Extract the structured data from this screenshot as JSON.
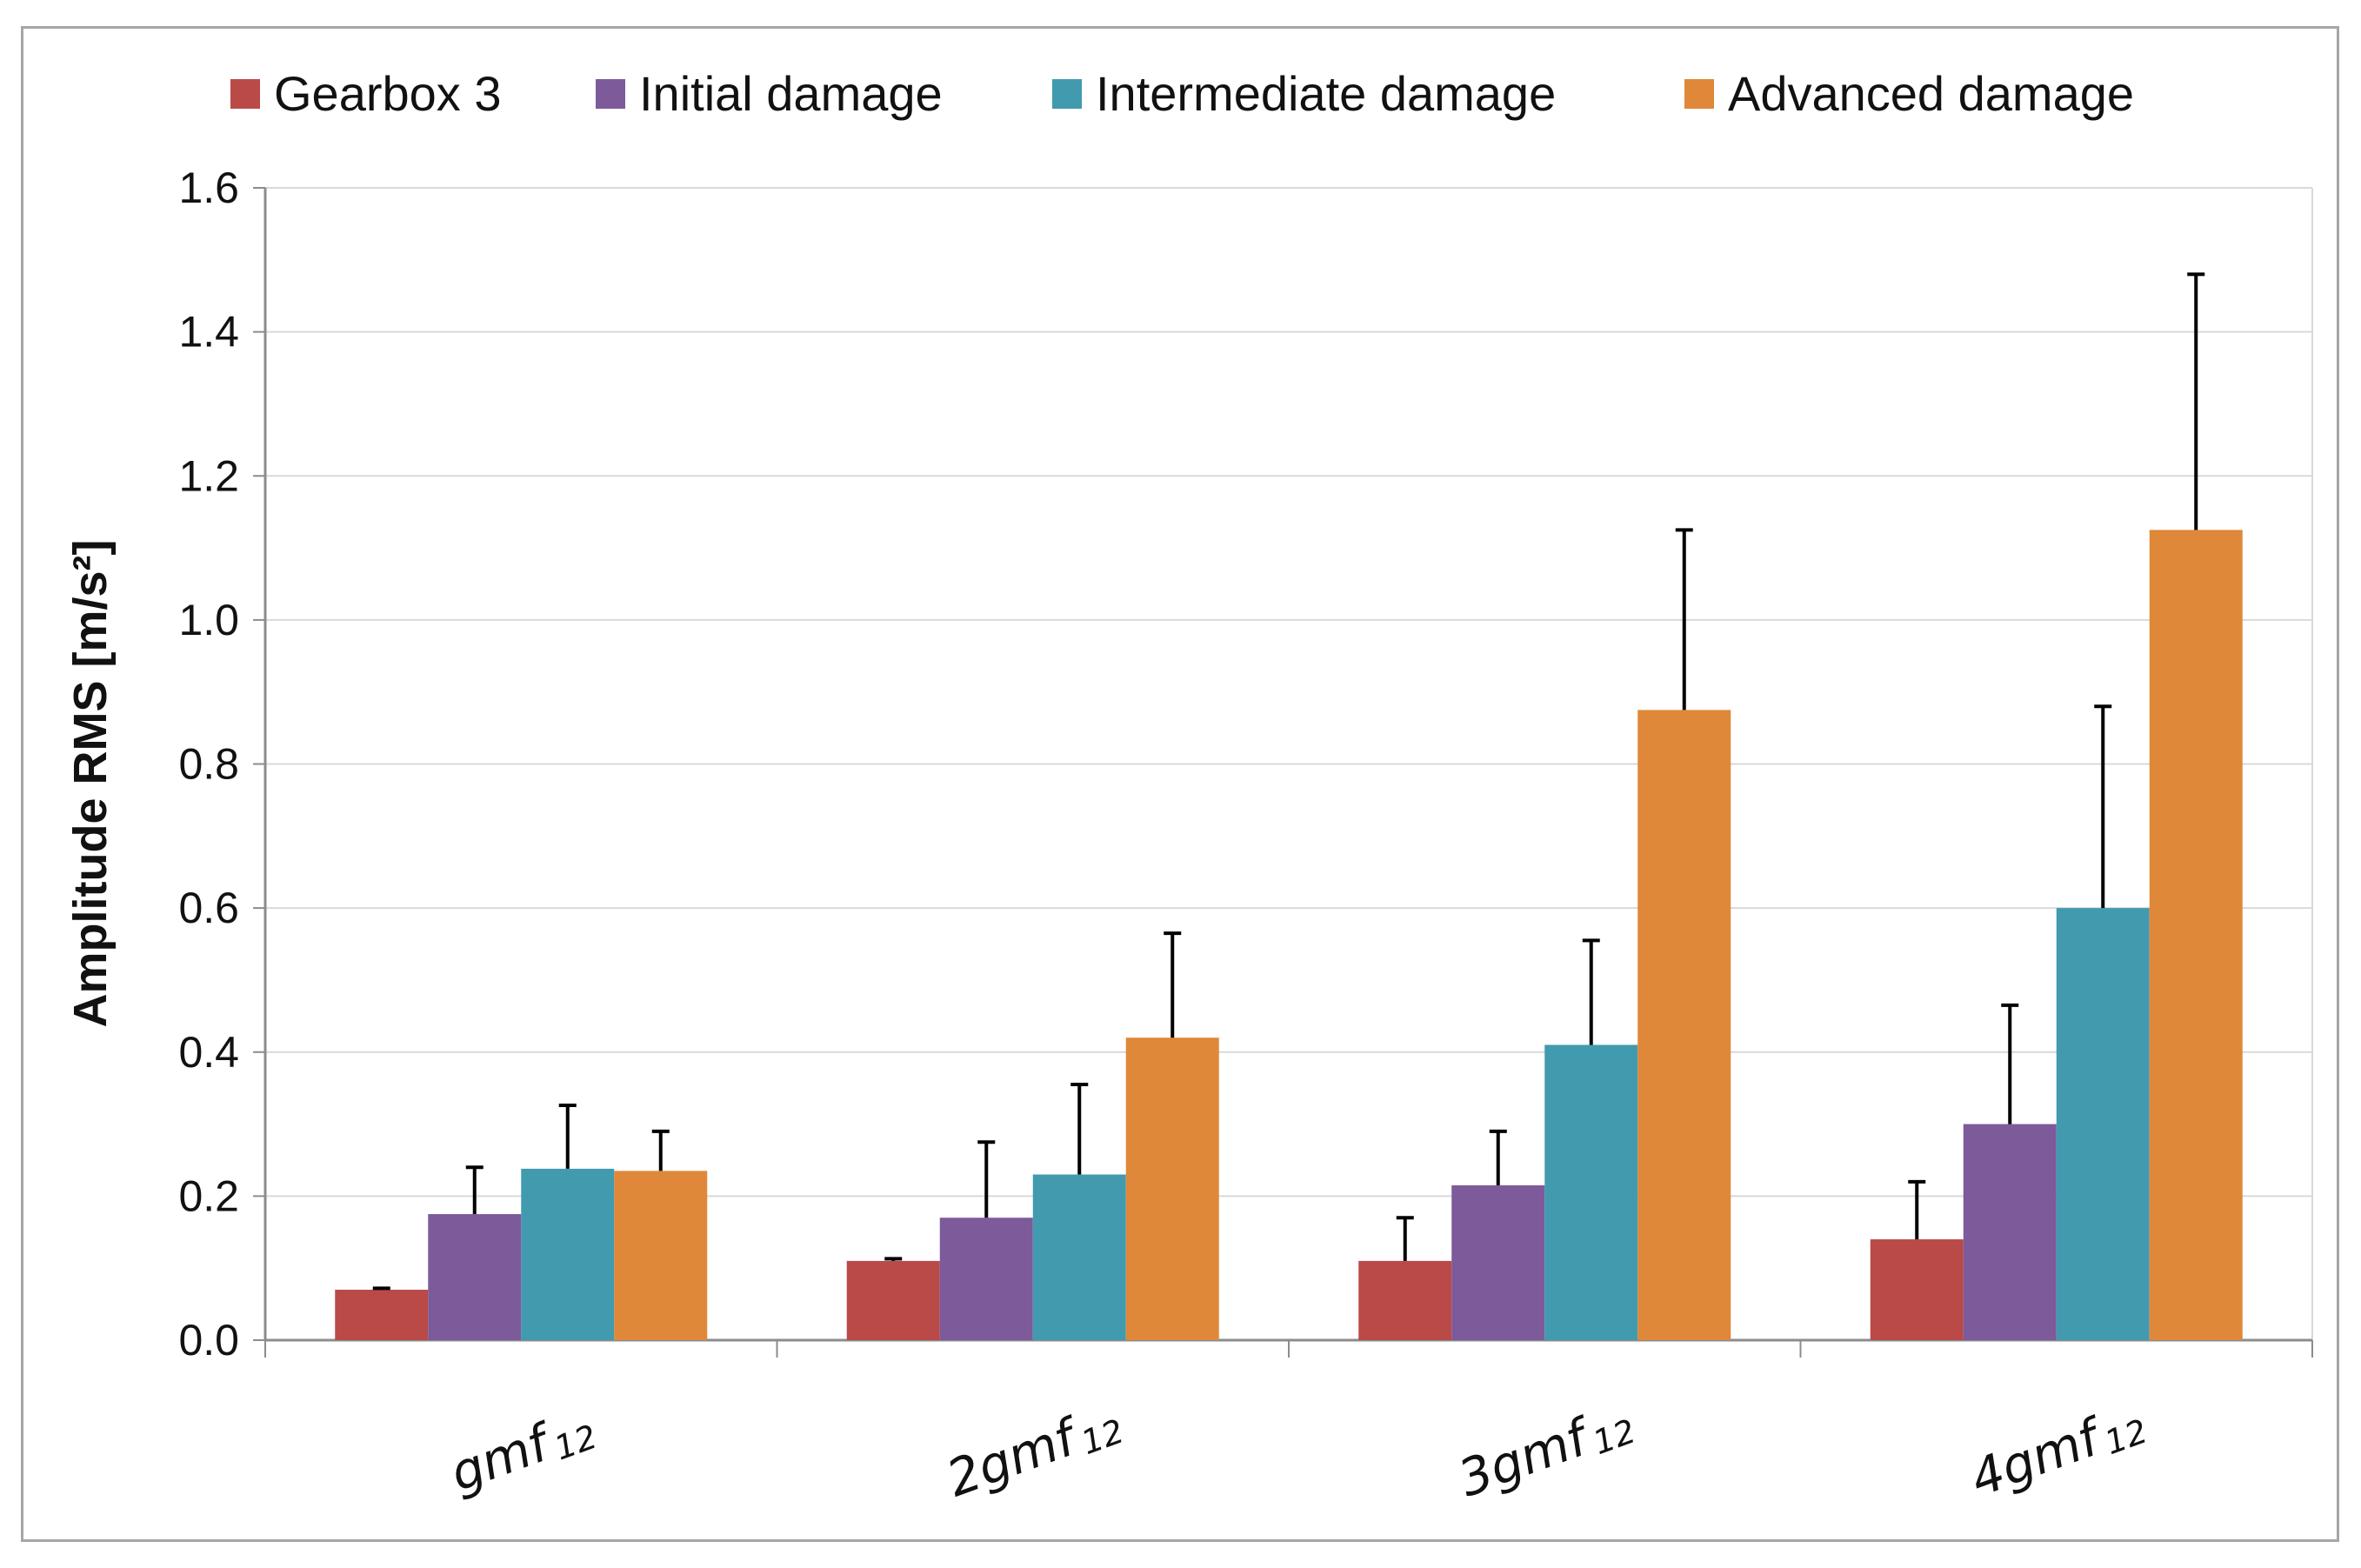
{
  "chart_data": {
    "type": "bar",
    "title": "",
    "xlabel": "",
    "ylabel": "Amplitude RMS [m/s²]",
    "ylim": [
      0,
      1.6
    ],
    "yticks": [
      "0.0",
      "0.2",
      "0.4",
      "0.6",
      "0.8",
      "1.0",
      "1.2",
      "1.4",
      "1.6"
    ],
    "grid": true,
    "legend_position": "top",
    "categories": [
      {
        "main": "gmf",
        "sub": "12"
      },
      {
        "main": "2gmf",
        "sub": "12"
      },
      {
        "main": "3gmf",
        "sub": "12"
      },
      {
        "main": "4gmf",
        "sub": "12"
      }
    ],
    "series": [
      {
        "name": "Gearbox 3",
        "color": "#b94a48",
        "values": [
          0.07,
          0.11,
          0.11,
          0.14
        ],
        "errors": [
          0.002,
          0.003,
          0.06,
          0.08
        ]
      },
      {
        "name": "Initial damage",
        "color": "#7d5a9a",
        "values": [
          0.175,
          0.17,
          0.215,
          0.3
        ],
        "errors": [
          0.065,
          0.105,
          0.075,
          0.165
        ]
      },
      {
        "name": "Intermediate damage",
        "color": "#429aaf",
        "values": [
          0.238,
          0.23,
          0.41,
          0.6
        ],
        "errors": [
          0.088,
          0.125,
          0.145,
          0.28
        ]
      },
      {
        "name": "Advanced damage",
        "color": "#df8839",
        "values": [
          0.235,
          0.42,
          0.875,
          1.125
        ],
        "errors": [
          0.055,
          0.145,
          0.25,
          0.355
        ]
      }
    ]
  }
}
